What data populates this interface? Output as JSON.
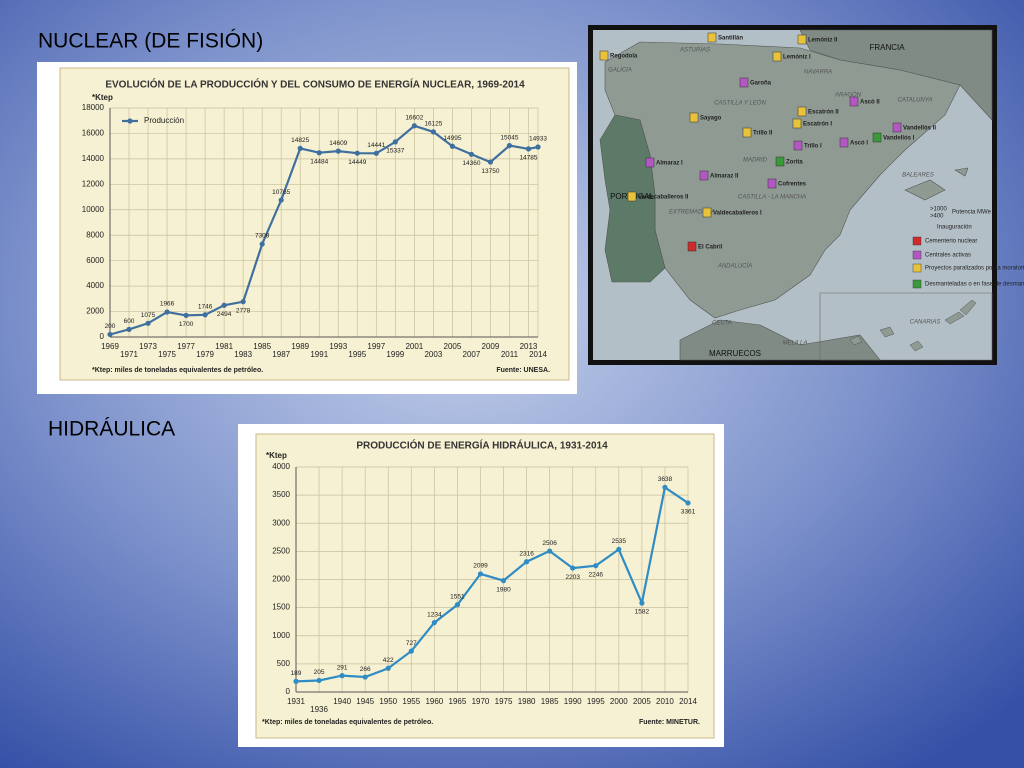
{
  "headings": [
    "NUCLEAR (DE FISIÓN)",
    "HIDRÁULICA"
  ],
  "chart_data": [
    {
      "type": "line",
      "title": "EVOLUCIÓN DE LA PRODUCCIÓN Y DEL CONSUMO DE ENERGÍA NUCLEAR, 1969-2014",
      "y_label": "*Ktep",
      "note": "*Ktep: miles de toneladas equivalentes de petróleo.",
      "source": "Fuente: UNESA.",
      "x": [
        1969,
        1971,
        1973,
        1975,
        1977,
        1979,
        1981,
        1983,
        1985,
        1987,
        1989,
        1991,
        1993,
        1995,
        1997,
        1999,
        2001,
        2003,
        2005,
        2007,
        2009,
        2011,
        2013,
        2014
      ],
      "series": [
        {
          "name": "Producción",
          "color": "#3f6f9e",
          "values": [
            200,
            600,
            1075,
            1966,
            1700,
            1746,
            2494,
            2778,
            7308,
            10765,
            14825,
            14484,
            14609,
            14449,
            14441,
            15337,
            16602,
            16125,
            14995,
            14360,
            13750,
            15045,
            14785,
            14933
          ]
        }
      ],
      "xlim": [
        1969,
        2014
      ],
      "xticks": [
        1969,
        1971,
        1973,
        1975,
        1977,
        1979,
        1981,
        1983,
        1985,
        1987,
        1989,
        1991,
        1993,
        1995,
        1997,
        1999,
        2001,
        2003,
        2005,
        2007,
        2009,
        2011,
        2013,
        2014
      ],
      "ylim": [
        0,
        18000
      ],
      "yticks": [
        0,
        2000,
        4000,
        6000,
        8000,
        10000,
        12000,
        14000,
        16000,
        18000
      ],
      "grid": true,
      "legend": "upper left"
    },
    {
      "type": "line",
      "title": "PRODUCCIÓN DE ENERGÍA HIDRÁULICA, 1931-2014",
      "y_label": "*Ktep",
      "note": "*Ktep: miles de toneladas equivalentes de petróleo.",
      "source": "Fuente: MINETUR.",
      "categories": [
        "1931",
        "1936",
        "1940",
        "1945",
        "1950",
        "1955",
        "1960",
        "1965",
        "1970",
        "1975",
        "1980",
        "1985",
        "1990",
        "1995",
        "2000",
        "2005",
        "2010",
        "2014"
      ],
      "values": [
        189,
        205,
        291,
        266,
        422,
        727,
        1234,
        1551,
        2099,
        1980,
        2316,
        2506,
        2203,
        2246,
        2535,
        1582,
        3638,
        3361
      ],
      "color": "#2f8cc4",
      "ylim": [
        0,
        4000
      ],
      "yticks": [
        0,
        500,
        1000,
        1500,
        2000,
        2500,
        3000,
        3500,
        4000
      ],
      "grid": true
    }
  ],
  "map": {
    "regions": [
      "FRANCIA",
      "PORTUGAL",
      "MARRUECOS",
      "CANARIAS",
      "BALEARES",
      "CATALUNYA",
      "ARAGÓN",
      "CASTILLA Y LEÓN",
      "CASTILLA - LA MANCHA",
      "EXTREMADURA",
      "ANDALUCÍA",
      "GALICIA",
      "ASTURIAS",
      "NAVARRA",
      "MADRID",
      "CEUTA",
      "MELILLA"
    ],
    "plants": [
      "Regodola",
      "Santillán",
      "Lemóniz II",
      "Lemóniz I",
      "Garoña",
      "Sayago",
      "Escatrón II",
      "Escatrón I",
      "Ascó II",
      "Ascó I",
      "Vandellós II",
      "Vandellós I",
      "Trillo II",
      "Trillo I",
      "Zorita",
      "Cofrentes",
      "Almaraz I",
      "Almaraz II",
      "Valdecaballeros II",
      "Valdecaballeros I",
      "El Cabril"
    ],
    "legend": [
      ">1000",
      ">400",
      "Potencia MWe",
      "Inauguración",
      "Cementerio nuclear",
      "Centrales activas",
      "Proyectos paralizados por la moratoria nuclear",
      "Desmanteladas o en fase de desmantelación"
    ]
  }
}
